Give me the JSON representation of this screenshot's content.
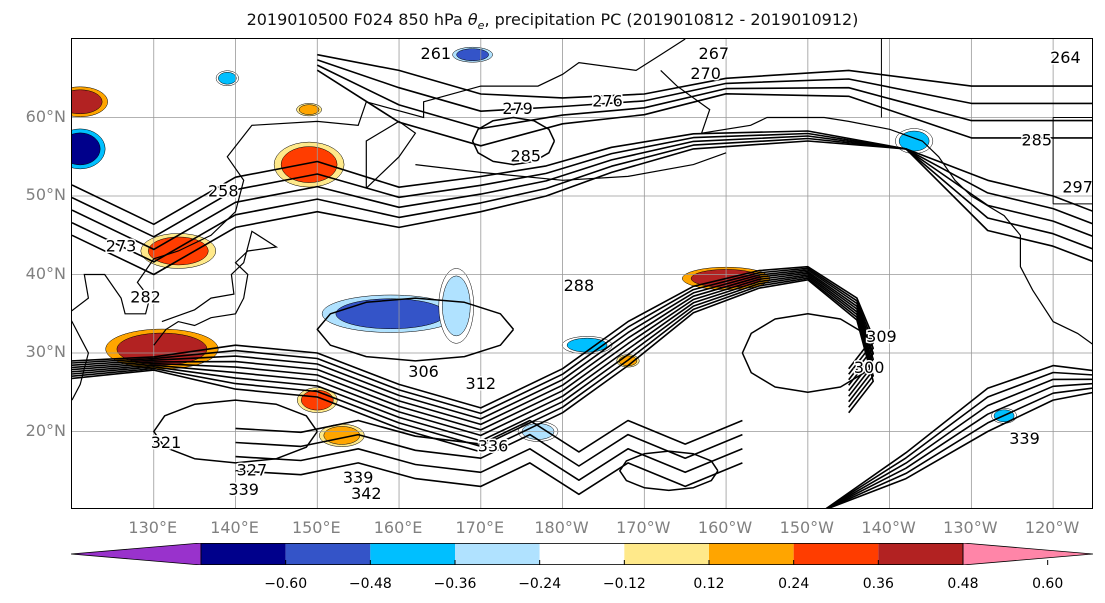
{
  "title": {
    "prefix": "2019010500 F024 850 hPa ",
    "symbol": "θ",
    "subscript": "e",
    "suffix": ", precipitation PC (2019010812 - 2019010912)"
  },
  "map": {
    "projection": "cylindrical",
    "lon_range": [
      120,
      245
    ],
    "lat_range": [
      10,
      70
    ],
    "gridlines": true,
    "coastlines": true,
    "lat_ticks": [
      {
        "value": 20,
        "label": "20°N"
      },
      {
        "value": 30,
        "label": "30°N"
      },
      {
        "value": 40,
        "label": "40°N"
      },
      {
        "value": 50,
        "label": "50°N"
      },
      {
        "value": 60,
        "label": "60°N"
      }
    ],
    "lon_ticks": [
      {
        "value": 130,
        "label": "130°E"
      },
      {
        "value": 140,
        "label": "140°E"
      },
      {
        "value": 150,
        "label": "150°E"
      },
      {
        "value": 160,
        "label": "160°E"
      },
      {
        "value": 170,
        "label": "170°E"
      },
      {
        "value": 180,
        "label": "180°W"
      },
      {
        "value": 190,
        "label": "170°W"
      },
      {
        "value": 200,
        "label": "160°W"
      },
      {
        "value": 210,
        "label": "150°W"
      },
      {
        "value": 220,
        "label": "140°W"
      },
      {
        "value": 230,
        "label": "130°W"
      },
      {
        "value": 240,
        "label": "120°W"
      }
    ]
  },
  "contour_labels": [
    {
      "text": "261",
      "lon": 164.5,
      "lat": 68
    },
    {
      "text": "267",
      "lon": 198.5,
      "lat": 68
    },
    {
      "text": "264",
      "lon": 241.5,
      "lat": 67.5
    },
    {
      "text": "270",
      "lon": 197.5,
      "lat": 65.5
    },
    {
      "text": "276",
      "lon": 185.5,
      "lat": 62
    },
    {
      "text": "279",
      "lon": 174.5,
      "lat": 61
    },
    {
      "text": "285",
      "lon": 175.5,
      "lat": 55
    },
    {
      "text": "285",
      "lon": 238,
      "lat": 57
    },
    {
      "text": "297",
      "lon": 243,
      "lat": 51
    },
    {
      "text": "258",
      "lon": 138.5,
      "lat": 50.5
    },
    {
      "text": "273",
      "lon": 126,
      "lat": 43.5
    },
    {
      "text": "282",
      "lon": 129,
      "lat": 37
    },
    {
      "text": "288",
      "lon": 182,
      "lat": 38.5
    },
    {
      "text": "306",
      "lon": 163,
      "lat": 27.5
    },
    {
      "text": "312",
      "lon": 170,
      "lat": 26
    },
    {
      "text": "300",
      "lon": 217.5,
      "lat": 28
    },
    {
      "text": "309",
      "lon": 219,
      "lat": 32
    },
    {
      "text": "321",
      "lon": 131.5,
      "lat": 18.5
    },
    {
      "text": "327",
      "lon": 142,
      "lat": 15
    },
    {
      "text": "339",
      "lon": 155,
      "lat": 14
    },
    {
      "text": "339",
      "lon": 141,
      "lat": 12.5
    },
    {
      "text": "342",
      "lon": 156,
      "lat": 12
    },
    {
      "text": "339",
      "lon": 236.5,
      "lat": 19
    },
    {
      "text": "336",
      "lon": 171.5,
      "lat": 18
    }
  ],
  "precip_blobs": [
    {
      "lon": 121,
      "lat": 62,
      "rx": 22,
      "ry": 12,
      "level": 0.48
    },
    {
      "lon": 121,
      "lat": 56,
      "rx": 20,
      "ry": 16,
      "level": -0.6
    },
    {
      "lon": 149,
      "lat": 54,
      "rx": 28,
      "ry": 18,
      "level": 0.36
    },
    {
      "lon": 133,
      "lat": 43,
      "rx": 30,
      "ry": 14,
      "level": 0.36
    },
    {
      "lon": 131,
      "lat": 30.5,
      "rx": 45,
      "ry": 16,
      "level": 0.48
    },
    {
      "lon": 159,
      "lat": 35,
      "rx": 55,
      "ry": 15,
      "level": -0.48
    },
    {
      "lon": 167,
      "lat": 36,
      "rx": 14,
      "ry": 30,
      "level": -0.24
    },
    {
      "lon": 150,
      "lat": 24,
      "rx": 16,
      "ry": 10,
      "level": 0.36
    },
    {
      "lon": 153,
      "lat": 19.5,
      "rx": 18,
      "ry": 9,
      "level": 0.24
    },
    {
      "lon": 200,
      "lat": 39.5,
      "rx": 35,
      "ry": 9,
      "level": 0.48
    },
    {
      "lon": 183,
      "lat": 31,
      "rx": 20,
      "ry": 7,
      "level": -0.36
    },
    {
      "lon": 223,
      "lat": 57,
      "rx": 15,
      "ry": 10,
      "level": -0.36
    },
    {
      "lon": 169,
      "lat": 68,
      "rx": 16,
      "ry": 6,
      "level": -0.48
    },
    {
      "lon": 177,
      "lat": 20,
      "rx": 16,
      "ry": 8,
      "level": -0.24
    },
    {
      "lon": 139,
      "lat": 65,
      "rx": 9,
      "ry": 6,
      "level": -0.36
    },
    {
      "lon": 149,
      "lat": 61,
      "rx": 10,
      "ry": 5,
      "level": 0.24
    },
    {
      "lon": 188,
      "lat": 29,
      "rx": 9,
      "ry": 5,
      "level": 0.24
    },
    {
      "lon": 234,
      "lat": 22,
      "rx": 10,
      "ry": 6,
      "level": -0.36
    }
  ],
  "colorbar": {
    "colors": [
      "#9932cc",
      "#00008b",
      "#3454c8",
      "#00bfff",
      "#b0e2ff",
      "#ffffff",
      "#ffe98a",
      "#ffa500",
      "#ff3d00",
      "#b22222",
      "#ff85a8"
    ],
    "ticks": [
      "−0.60",
      "−0.48",
      "−0.36",
      "−0.24",
      "−0.12",
      "0.12",
      "0.24",
      "0.36",
      "0.48",
      "0.60"
    ],
    "extend": "both"
  }
}
